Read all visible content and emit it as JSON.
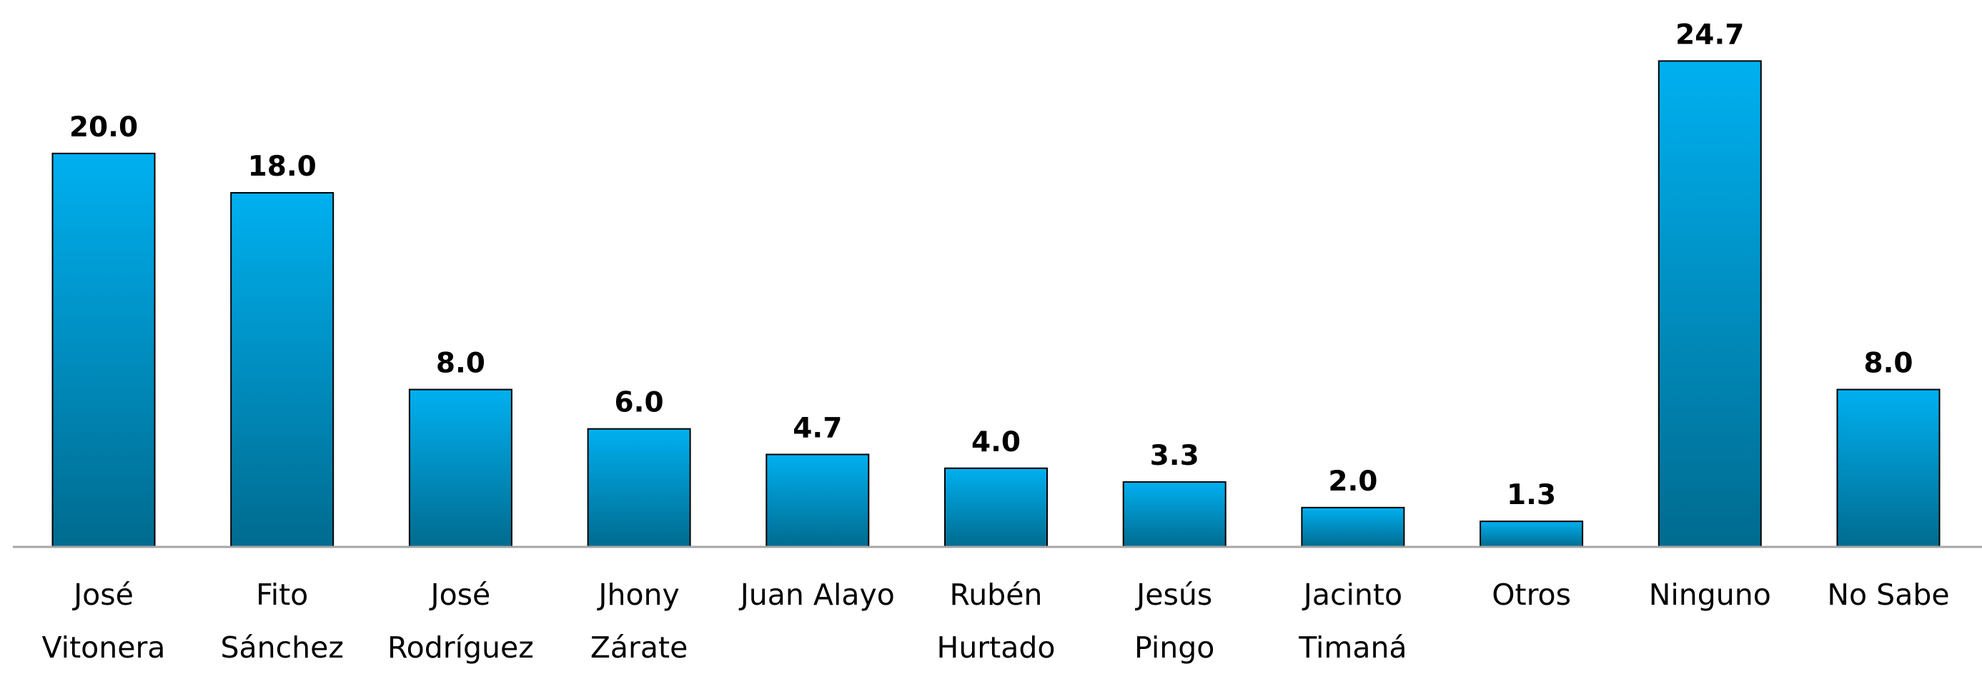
{
  "chart_data": {
    "type": "bar",
    "categories": [
      "José\nVitonera",
      "Fito\nSánchez",
      "José\nRodríguez",
      "Jhony\nZárate",
      "Juan Alayo",
      "Rubén\nHurtado",
      "Jesús\nPingo",
      "Jacinto\nTimaná",
      "Otros",
      "Ninguno",
      "No Sabe"
    ],
    "values": [
      20,
      18,
      8,
      6,
      4.7,
      4,
      3.3,
      2,
      1.3,
      24.7,
      8
    ],
    "value_labels": [
      "20.0",
      "18.0",
      "8.0",
      "6.0",
      "4.7",
      "4.0",
      "3.3",
      "2.0",
      "1.3",
      "24.7",
      "8.0"
    ],
    "color": "#00b0f0",
    "ylim": [
      0,
      27.8
    ]
  }
}
